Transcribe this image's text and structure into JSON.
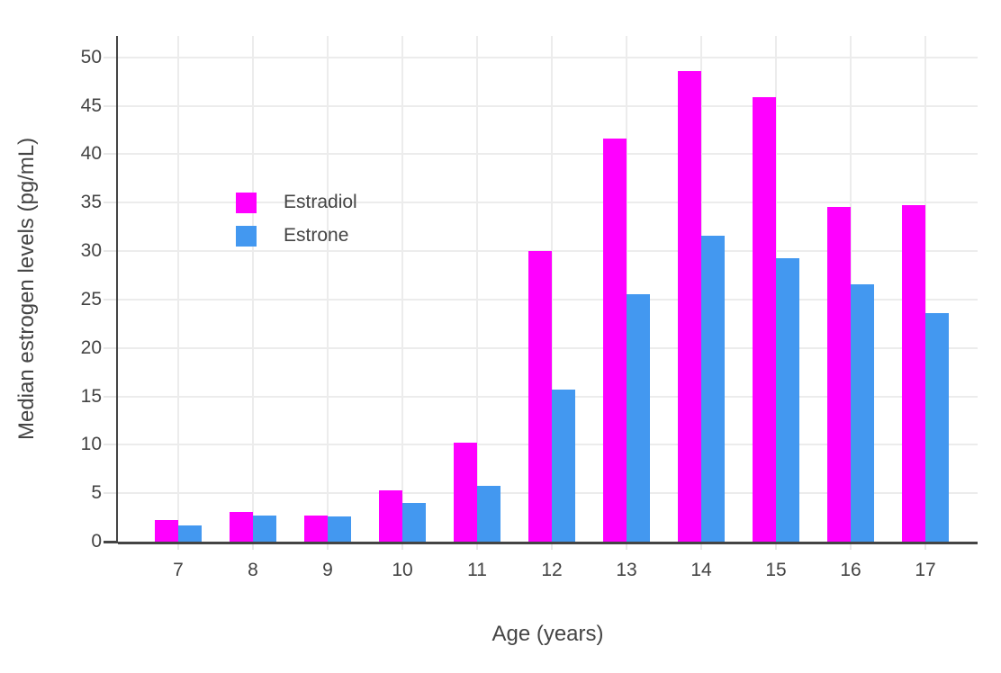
{
  "chart_data": {
    "type": "bar",
    "title": "",
    "xlabel": "Age (years)",
    "ylabel": "Median estrogen levels (pg/mL)",
    "categories": [
      7,
      8,
      9,
      10,
      11,
      12,
      13,
      14,
      15,
      16,
      17
    ],
    "series": [
      {
        "name": "Estradiol",
        "color": "#ff00ff",
        "values": [
          2.2,
          3.1,
          2.7,
          5.3,
          10.2,
          30.0,
          41.6,
          48.6,
          45.9,
          34.6,
          34.7
        ]
      },
      {
        "name": "Estrone",
        "color": "#4398f0",
        "values": [
          1.7,
          2.7,
          2.6,
          4.0,
          5.8,
          15.7,
          25.5,
          31.6,
          29.3,
          26.6,
          23.6
        ]
      }
    ],
    "ylim": [
      0,
      52.2
    ],
    "yticks": [
      0,
      5,
      10,
      15,
      20,
      25,
      30,
      35,
      40,
      45,
      50
    ],
    "grid": true,
    "legend_position": "inside-top-left"
  },
  "colors": {
    "estradiol": "#ff00ff",
    "estrone": "#4398f0",
    "axis_line": "#444444",
    "text": "#444444",
    "gridline": "#ececec",
    "background": "#ffffff"
  }
}
